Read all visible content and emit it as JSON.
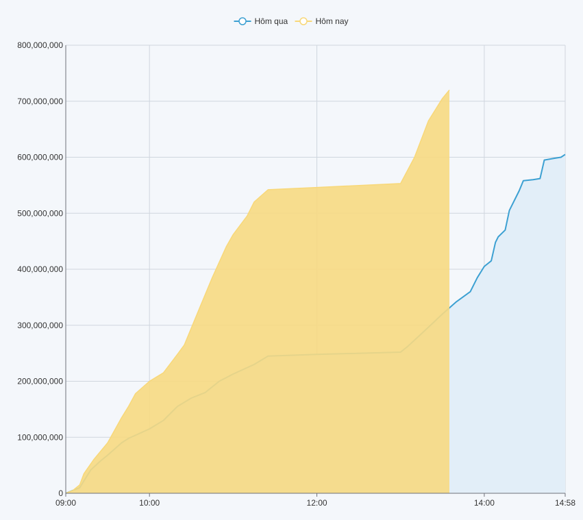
{
  "chart_data": {
    "type": "area",
    "xlabel": "",
    "ylabel": "",
    "grid": true,
    "legend_position": "top-center",
    "xlim": [
      "09:00",
      "14:58"
    ],
    "ylim": [
      0,
      800000000
    ],
    "x_ticks": [
      "09:00",
      "10:00",
      "12:00",
      "14:00",
      "14:58"
    ],
    "y_ticks": [
      "0",
      "100,000,000",
      "200,000,000",
      "300,000,000",
      "400,000,000",
      "500,000,000",
      "600,000,000",
      "700,000,000",
      "800,000,000"
    ],
    "series": [
      {
        "name": "Hôm qua",
        "color": "#3ca0d2",
        "fill": "#e2eef8",
        "points": [
          [
            "09:00",
            0
          ],
          [
            "09:05",
            5000000
          ],
          [
            "09:10",
            10000000
          ],
          [
            "09:12",
            18000000
          ],
          [
            "09:15",
            30000000
          ],
          [
            "09:18",
            42000000
          ],
          [
            "09:25",
            58000000
          ],
          [
            "09:30",
            68000000
          ],
          [
            "09:40",
            90000000
          ],
          [
            "09:45",
            98000000
          ],
          [
            "10:00",
            115000000
          ],
          [
            "10:10",
            130000000
          ],
          [
            "10:20",
            155000000
          ],
          [
            "10:30",
            170000000
          ],
          [
            "10:40",
            180000000
          ],
          [
            "10:50",
            200000000
          ],
          [
            "11:00",
            213000000
          ],
          [
            "11:15",
            230000000
          ],
          [
            "11:25",
            245000000
          ],
          [
            "12:00",
            248000000
          ],
          [
            "13:00",
            252000000
          ],
          [
            "13:05",
            262000000
          ],
          [
            "13:15",
            285000000
          ],
          [
            "13:30",
            320000000
          ],
          [
            "13:40",
            342000000
          ],
          [
            "13:50",
            360000000
          ],
          [
            "13:55",
            385000000
          ],
          [
            "14:00",
            405000000
          ],
          [
            "14:05",
            415000000
          ],
          [
            "14:08",
            448000000
          ],
          [
            "14:10",
            458000000
          ],
          [
            "14:15",
            470000000
          ],
          [
            "14:18",
            505000000
          ],
          [
            "14:25",
            540000000
          ],
          [
            "14:28",
            558000000
          ],
          [
            "14:35",
            560000000
          ],
          [
            "14:40",
            562000000
          ],
          [
            "14:43",
            595000000
          ],
          [
            "14:50",
            598000000
          ],
          [
            "14:55",
            600000000
          ],
          [
            "14:58",
            605000000
          ]
        ]
      },
      {
        "name": "Hôm nay",
        "color": "#f8d879",
        "fill": "#f7d982",
        "points": [
          [
            "09:00",
            0
          ],
          [
            "09:05",
            5000000
          ],
          [
            "09:10",
            15000000
          ],
          [
            "09:13",
            35000000
          ],
          [
            "09:20",
            60000000
          ],
          [
            "09:30",
            90000000
          ],
          [
            "09:40",
            135000000
          ],
          [
            "09:45",
            155000000
          ],
          [
            "09:50",
            178000000
          ],
          [
            "10:00",
            200000000
          ],
          [
            "10:10",
            215000000
          ],
          [
            "10:20",
            248000000
          ],
          [
            "10:25",
            265000000
          ],
          [
            "10:35",
            325000000
          ],
          [
            "10:45",
            385000000
          ],
          [
            "10:55",
            440000000
          ],
          [
            "11:00",
            462000000
          ],
          [
            "11:10",
            495000000
          ],
          [
            "11:15",
            520000000
          ],
          [
            "11:25",
            542000000
          ],
          [
            "12:00",
            546000000
          ],
          [
            "13:00",
            553000000
          ],
          [
            "13:10",
            600000000
          ],
          [
            "13:20",
            665000000
          ],
          [
            "13:30",
            705000000
          ],
          [
            "13:35",
            720000000
          ]
        ]
      }
    ]
  }
}
